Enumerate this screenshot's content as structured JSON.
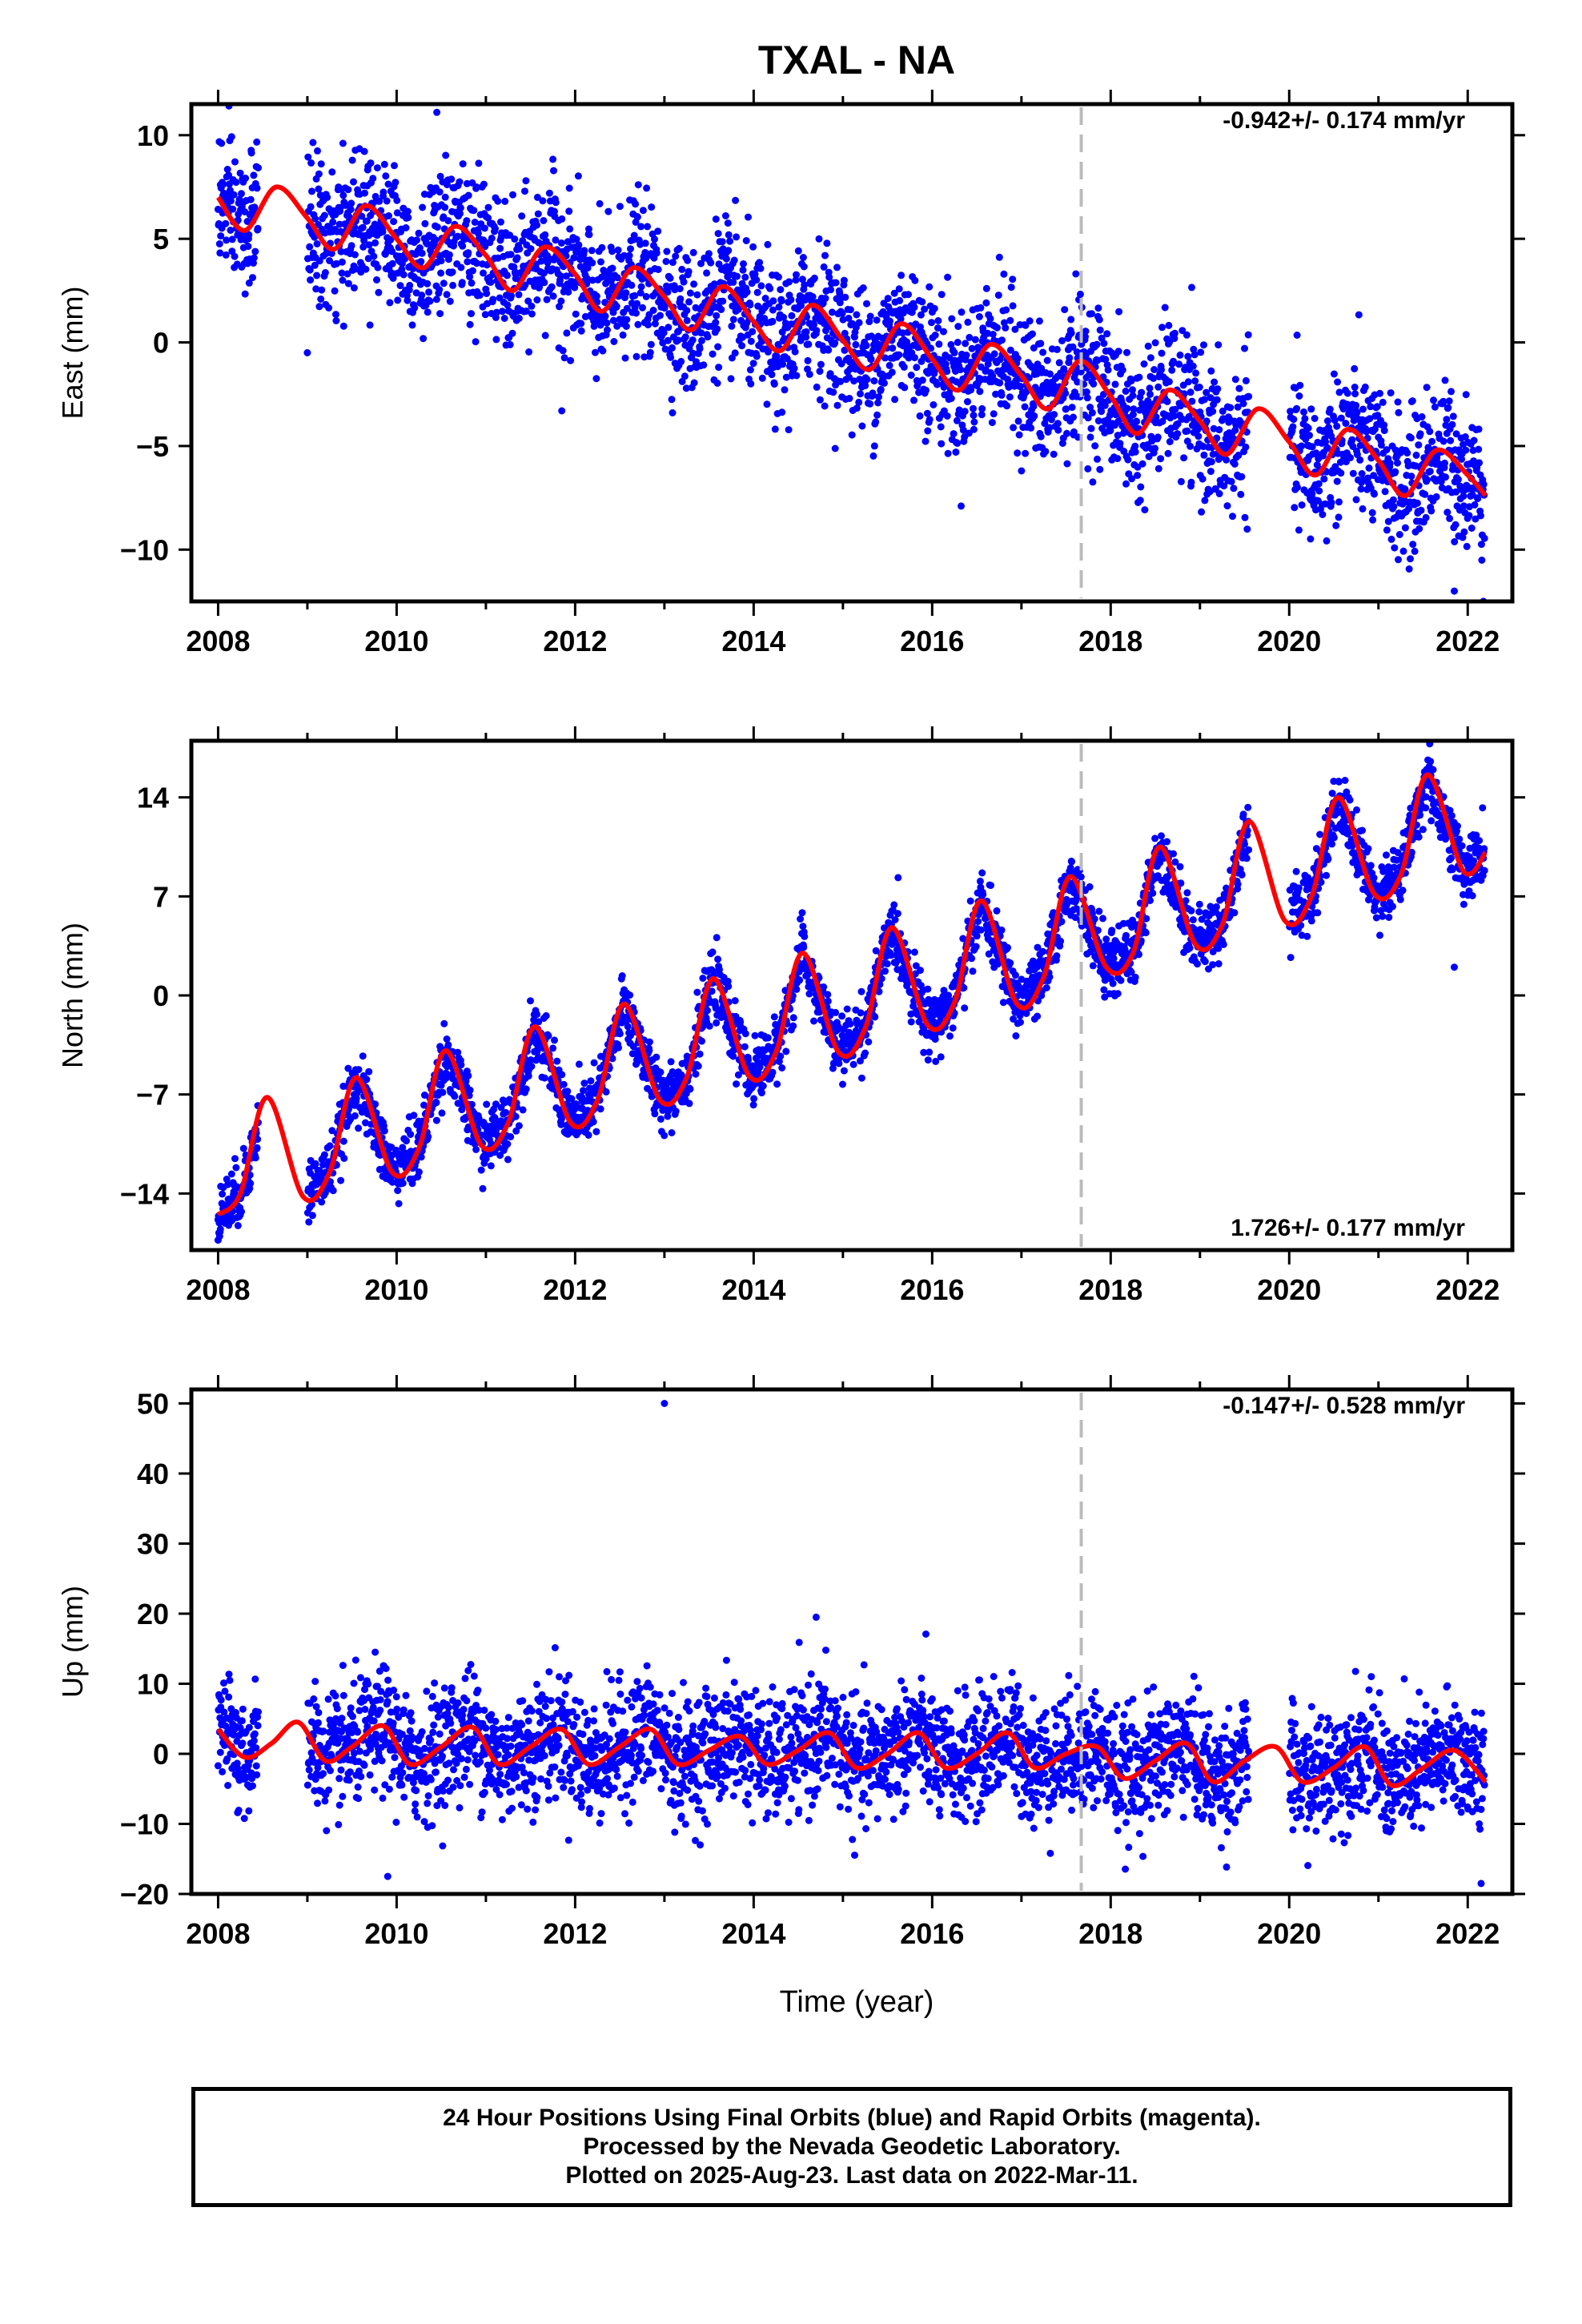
{
  "title": "TXAL - NA",
  "x_label": "Time (year)",
  "footer": {
    "line1": "24 Hour Positions Using Final Orbits (blue) and Rapid Orbits (magenta).",
    "line2": "Processed by the Nevada Geodetic Laboratory.",
    "line3": "Plotted on 2025-Aug-23. Last data on 2022-Mar-11."
  },
  "colors": {
    "points": "#0000ff",
    "model": "#ff0000",
    "event_line": "#bbbbbb"
  },
  "chart_data": [
    {
      "type": "scatter",
      "component": "east",
      "ylabel": "East (mm)",
      "rate_label": "-0.942+/- 0.174 mm/yr",
      "rate_position": "top-right",
      "xlim": [
        2007.7,
        2022.5
      ],
      "ylim": [
        -12.5,
        11.5
      ],
      "xticks": [
        "2008",
        "2010",
        "2012",
        "2014",
        "2016",
        "2018",
        "2020",
        "2022"
      ],
      "yticks": [
        "10",
        "5",
        "0",
        "−5",
        "−10"
      ],
      "ytick_values": [
        10,
        5,
        0,
        -5,
        -10
      ],
      "event_line_x": 2017.67,
      "rate_mm_per_yr": -0.942,
      "intercept_at_2008": 6.0,
      "annual_amplitude": 1.5,
      "noise_sd": 1.7,
      "model_curve": {
        "x": [
          2008.0,
          2008.3,
          2008.65,
          2009.0,
          2009.3,
          2009.65,
          2010.0,
          2010.3,
          2010.65,
          2011.0,
          2011.3,
          2011.65,
          2012.0,
          2012.3,
          2012.65,
          2013.0,
          2013.3,
          2013.65,
          2014.0,
          2014.3,
          2014.65,
          2015.0,
          2015.3,
          2015.65,
          2016.0,
          2016.3,
          2016.65,
          2017.0,
          2017.3,
          2017.65,
          2018.0,
          2018.3,
          2018.65,
          2019.0,
          2019.3,
          2019.65,
          2020.0,
          2020.3,
          2020.65,
          2021.0,
          2021.3,
          2021.65,
          2022.0,
          2022.2
        ],
        "y": [
          7.0,
          5.4,
          7.5,
          6.0,
          4.5,
          6.6,
          5.0,
          3.6,
          5.6,
          4.2,
          2.5,
          4.6,
          3.3,
          1.5,
          3.6,
          2.2,
          0.6,
          2.7,
          1.0,
          -0.4,
          1.8,
          0.1,
          -1.3,
          0.9,
          -0.8,
          -2.3,
          -0.1,
          -1.6,
          -3.2,
          -0.9,
          -2.6,
          -4.4,
          -2.3,
          -3.8,
          -5.4,
          -3.2,
          -4.8,
          -6.4,
          -4.2,
          -5.7,
          -7.4,
          -5.2,
          -6.4,
          -7.4
        ]
      },
      "gaps": [
        [
          2008.45,
          2009.0
        ],
        [
          2019.55,
          2020.0
        ]
      ],
      "outliers": [
        {
          "x": 2010.45,
          "y": 11.1
        },
        {
          "x": 2009.0,
          "y": -0.5
        },
        {
          "x": 2011.85,
          "y": -3.3
        },
        {
          "x": 2021.85,
          "y": -12.0
        }
      ]
    },
    {
      "type": "scatter",
      "component": "north",
      "ylabel": "North (mm)",
      "rate_label": "1.726+/- 0.177 mm/yr",
      "rate_position": "bottom-right",
      "xlim": [
        2007.7,
        2022.5
      ],
      "ylim": [
        -18,
        18
      ],
      "xticks": [
        "2008",
        "2010",
        "2012",
        "2014",
        "2016",
        "2018",
        "2020",
        "2022"
      ],
      "yticks": [
        "14",
        "7",
        "0",
        "−7",
        "−14"
      ],
      "ytick_values": [
        14,
        7,
        0,
        -7,
        -14
      ],
      "event_line_x": 2017.67,
      "rate_mm_per_yr": 1.726,
      "intercept_at_2008": -13.5,
      "annual_amplitude": 3.5,
      "noise_sd": 1.1,
      "model_curve": {
        "x": [
          2008.0,
          2008.25,
          2008.55,
          2008.95,
          2009.25,
          2009.55,
          2009.95,
          2010.25,
          2010.55,
          2010.95,
          2011.25,
          2011.55,
          2011.95,
          2012.25,
          2012.55,
          2012.95,
          2013.25,
          2013.55,
          2013.95,
          2014.25,
          2014.55,
          2014.95,
          2015.25,
          2015.55,
          2015.95,
          2016.25,
          2016.55,
          2016.95,
          2017.25,
          2017.55,
          2017.95,
          2018.25,
          2018.55,
          2018.95,
          2019.25,
          2019.55,
          2019.95,
          2020.25,
          2020.55,
          2020.95,
          2021.25,
          2021.55,
          2021.95,
          2022.2
        ],
        "y": [
          -15.5,
          -14.0,
          -7.2,
          -14.2,
          -12.5,
          -5.8,
          -12.5,
          -10.8,
          -3.9,
          -10.6,
          -9.0,
          -2.2,
          -9.0,
          -7.4,
          -0.6,
          -7.4,
          -5.8,
          1.2,
          -5.7,
          -4.0,
          3.0,
          -4.0,
          -2.3,
          4.8,
          -2.1,
          -0.5,
          6.7,
          -0.6,
          1.3,
          8.4,
          2.0,
          3.0,
          10.5,
          3.6,
          5.0,
          12.3,
          5.3,
          7.0,
          14.0,
          7.2,
          8.5,
          15.6,
          8.8,
          10.1
        ]
      },
      "gaps": [
        [
          2008.45,
          2009.0
        ],
        [
          2019.55,
          2020.0
        ]
      ],
      "outliers": [
        {
          "x": 2021.85,
          "y": 2.0
        },
        {
          "x": 2008.0,
          "y": -17.3
        }
      ]
    },
    {
      "type": "scatter",
      "component": "up",
      "ylabel": "Up (mm)",
      "rate_label": "-0.147+/- 0.528 mm/yr",
      "rate_position": "top-right",
      "xlim": [
        2007.7,
        2022.5
      ],
      "ylim": [
        -20,
        52
      ],
      "xticks": [
        "2008",
        "2010",
        "2012",
        "2014",
        "2016",
        "2018",
        "2020",
        "2022"
      ],
      "yticks": [
        "50",
        "40",
        "30",
        "20",
        "10",
        "0",
        "−10",
        "−20"
      ],
      "ytick_values": [
        50,
        40,
        30,
        20,
        10,
        0,
        -10,
        -20
      ],
      "event_line_x": 2017.67,
      "rate_mm_per_yr": -0.147,
      "intercept_at_2008": 1.0,
      "annual_amplitude": 2.5,
      "noise_sd": 4.3,
      "model_curve": {
        "x": [
          2008.0,
          2008.3,
          2008.6,
          2008.9,
          2009.2,
          2009.5,
          2009.85,
          2010.15,
          2010.5,
          2010.85,
          2011.15,
          2011.5,
          2011.85,
          2012.15,
          2012.5,
          2012.85,
          2013.15,
          2013.5,
          2013.85,
          2014.15,
          2014.5,
          2014.85,
          2015.15,
          2015.5,
          2015.85,
          2016.15,
          2016.5,
          2016.85,
          2017.15,
          2017.5,
          2017.85,
          2018.15,
          2018.5,
          2018.85,
          2019.15,
          2019.5,
          2019.85,
          2020.15,
          2020.5,
          2020.85,
          2021.15,
          2021.5,
          2021.85,
          2022.2
        ],
        "y": [
          3.5,
          -0.5,
          1.5,
          4.5,
          -1.0,
          1.0,
          4.0,
          -1.5,
          1.0,
          3.8,
          -1.5,
          1.0,
          3.5,
          -1.5,
          1.0,
          3.5,
          -1.5,
          0.5,
          2.5,
          -1.5,
          0.5,
          3.0,
          -2.0,
          0.0,
          3.0,
          -2.0,
          0.0,
          3.0,
          -2.0,
          0.0,
          1.0,
          -3.5,
          -1.0,
          1.5,
          -4.0,
          -1.0,
          1.0,
          -4.0,
          -2.0,
          1.0,
          -4.5,
          -2.0,
          0.5,
          -4.0
        ]
      },
      "gaps": [
        [
          2008.45,
          2009.0
        ],
        [
          2019.55,
          2020.0
        ]
      ],
      "outliers": [
        {
          "x": 2013.0,
          "y": 50.0
        },
        {
          "x": 2022.15,
          "y": -18.5
        },
        {
          "x": 2009.9,
          "y": -17.5
        },
        {
          "x": 2014.7,
          "y": 19.5
        }
      ]
    }
  ]
}
